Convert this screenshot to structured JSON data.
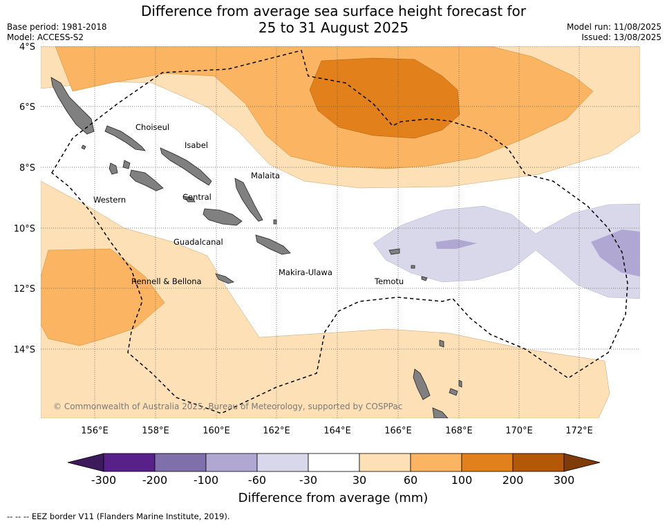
{
  "title_line1": "Difference from average sea surface height forecast for",
  "title_line2": "25 to 31 August 2025",
  "base_period": "Base period: 1981-2018",
  "model": "Model: ACCESS-S2",
  "model_run": "Model run: 11/08/2025",
  "issued": "Issued: 13/08/2025",
  "lat_labels": [
    "4°S",
    "6°S",
    "8°S",
    "10°S",
    "12°S",
    "14°S"
  ],
  "lon_labels": [
    "156°E",
    "158°E",
    "160°E",
    "162°E",
    "164°E",
    "166°E",
    "168°E",
    "170°E",
    "172°E"
  ],
  "places": {
    "choiseul": "Choiseul",
    "isabel": "Isabel",
    "malaita": "Malaita",
    "western": "Western",
    "central": "Central",
    "guadalcanal": "Guadalcanal",
    "makira": "Makira-Ulawa",
    "temotu": "Temotu",
    "rennell": "Rennell & Bellona"
  },
  "credit": "© Commonwealth of Australia 2025, Bureau of Meteorology, supported by COSPPac",
  "colorbar": {
    "ticks": [
      "-300",
      "-200",
      "-100",
      "-60",
      "-30",
      "30",
      "60",
      "100",
      "200",
      "300"
    ],
    "colors": [
      "#3c1a5b",
      "#58218a",
      "#7f70ac",
      "#b0a8d2",
      "#d8d8ea",
      "#ffffff",
      "#fde0b6",
      "#fbb562",
      "#e2811b",
      "#b35807",
      "#7f3b08"
    ],
    "label": "Difference from average (mm)"
  },
  "footer": "-- -- -- EEZ border V11 (Flanders Marine Institute, 2019)."
}
